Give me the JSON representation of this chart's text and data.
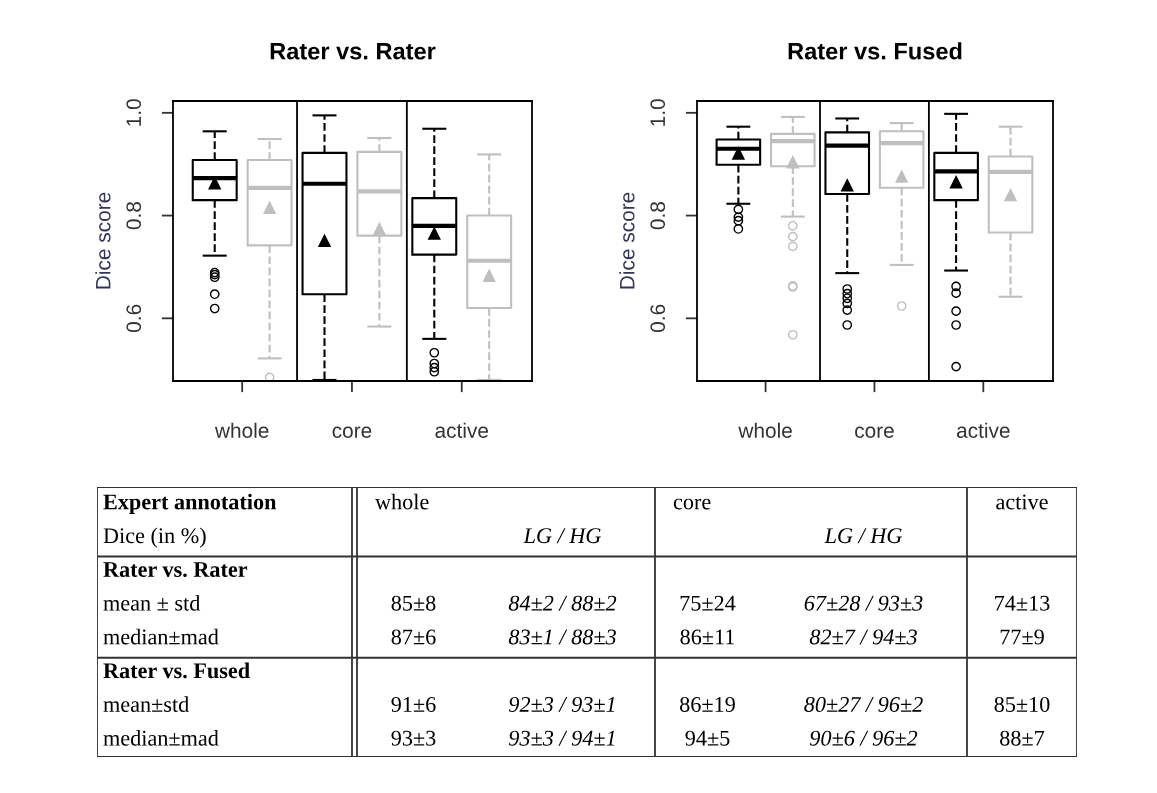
{
  "chart_data": [
    {
      "type": "box",
      "title": "Rater vs. Rater",
      "ylabel": "Dice score",
      "categories": [
        "whole",
        "core",
        "active"
      ],
      "ylim": [
        0.478,
        1.023
      ],
      "yticks": [
        {
          "value": 0.6,
          "label": "0.6"
        },
        {
          "value": 0.8,
          "label": "0.8"
        },
        {
          "value": 1.0,
          "label": "1.0"
        }
      ],
      "grid": false,
      "legend": false,
      "marker": "triangle",
      "line_style": "dashed",
      "series": [
        {
          "color": "#000000",
          "boxes": [
            {
              "low": 0.722,
              "q1": 0.83,
              "median": 0.873,
              "q3": 0.908,
              "high": 0.964,
              "mean": 0.863,
              "outliers": [
                0.689,
                0.685,
                0.68,
                0.647,
                0.619
              ]
            },
            {
              "low": 0.48,
              "q1": 0.647,
              "median": 0.862,
              "q3": 0.922,
              "high": 0.995,
              "mean": 0.751
            },
            {
              "low": 0.56,
              "q1": 0.724,
              "median": 0.78,
              "q3": 0.834,
              "high": 0.969,
              "mean": 0.765,
              "outliers": [
                0.533,
                0.512,
                0.504,
                0.496
              ]
            }
          ]
        },
        {
          "color": "#bfbfbf",
          "boxes": [
            {
              "low": 0.522,
              "q1": 0.742,
              "median": 0.854,
              "q3": 0.908,
              "high": 0.949,
              "mean": 0.815,
              "outliers": [
                0.485
              ]
            },
            {
              "low": 0.584,
              "q1": 0.761,
              "median": 0.847,
              "q3": 0.924,
              "high": 0.951,
              "mean": 0.774
            },
            {
              "low": 0.48,
              "q1": 0.62,
              "median": 0.712,
              "q3": 0.8,
              "high": 0.919,
              "mean": 0.683
            }
          ]
        }
      ]
    },
    {
      "type": "box",
      "title": "Rater vs. Fused",
      "ylabel": "Dice score",
      "categories": [
        "whole",
        "core",
        "active"
      ],
      "ylim": [
        0.478,
        1.023
      ],
      "yticks": [
        {
          "value": 0.6,
          "label": "0.6"
        },
        {
          "value": 0.8,
          "label": "0.8"
        },
        {
          "value": 1.0,
          "label": "1.0"
        }
      ],
      "grid": false,
      "legend": false,
      "marker": "triangle",
      "line_style": "dashed",
      "series": [
        {
          "color": "#000000",
          "boxes": [
            {
              "low": 0.823,
              "q1": 0.899,
              "median": 0.93,
              "q3": 0.948,
              "high": 0.973,
              "mean": 0.921,
              "outliers": [
                0.812,
                0.797,
                0.79,
                0.774
              ]
            },
            {
              "low": 0.688,
              "q1": 0.842,
              "median": 0.936,
              "q3": 0.962,
              "high": 0.989,
              "mean": 0.859,
              "outliers": [
                0.657,
                0.648,
                0.639,
                0.629,
                0.616,
                0.587
              ]
            },
            {
              "low": 0.693,
              "q1": 0.83,
              "median": 0.886,
              "q3": 0.922,
              "high": 0.998,
              "mean": 0.865,
              "outliers": [
                0.662,
                0.649,
                0.614,
                0.587,
                0.506
              ]
            }
          ]
        },
        {
          "color": "#bfbfbf",
          "boxes": [
            {
              "low": 0.798,
              "q1": 0.896,
              "median": 0.945,
              "q3": 0.959,
              "high": 0.992,
              "mean": 0.904,
              "outliers": [
                0.78,
                0.759,
                0.74,
                0.663,
                0.661,
                0.568
              ]
            },
            {
              "low": 0.704,
              "q1": 0.854,
              "median": 0.941,
              "q3": 0.964,
              "high": 0.98,
              "mean": 0.876,
              "outliers": [
                0.624
              ]
            },
            {
              "low": 0.642,
              "q1": 0.767,
              "median": 0.885,
              "q3": 0.915,
              "high": 0.973,
              "mean": 0.84
            }
          ]
        }
      ]
    },
    {
      "type": "other",
      "categories": [
        "whole",
        null,
        "core",
        null,
        "active"
      ],
      "y_categories": [
        "Expert annotation",
        "Dice (in %)",
        "Rater vs. Rater",
        "mean ± std",
        "median±mad",
        "Rater vs. Fused",
        "mean±std",
        "median±mad"
      ],
      "cell_labels": [
        [
          null,
          null,
          null,
          null,
          null
        ],
        [
          null,
          "LG / HG",
          null,
          "LG / HG",
          null
        ],
        [
          null,
          null,
          null,
          null,
          null
        ],
        [
          "85±8",
          "84±2 / 88±2",
          "75±24",
          "67±28 / 93±3",
          "74±13"
        ],
        [
          "87±6",
          "83±1 / 88±3",
          "86±11",
          "82±7 / 94±3",
          "77±9"
        ],
        [
          null,
          null,
          null,
          null,
          null
        ],
        [
          "91±6",
          "92±3 / 93±1",
          "86±19",
          "80±27 / 96±2",
          "85±10"
        ],
        [
          "93±3",
          "93±3 / 94±1",
          "94±5",
          "90±6 / 96±2",
          "88±7"
        ]
      ]
    }
  ]
}
